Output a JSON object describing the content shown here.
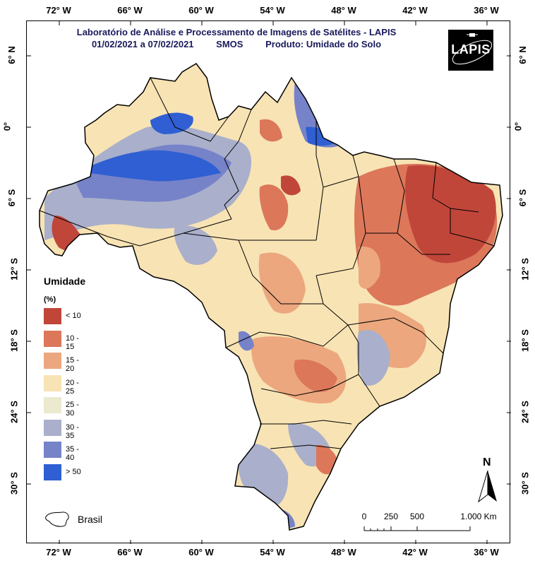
{
  "title": {
    "line1": "Laboratório de Análise e Processamento de Imagens de Satélites - LAPIS",
    "period": "01/02/2021  a  07/02/2021",
    "sensor": "SMOS",
    "product": "Produto: Umidade do Solo"
  },
  "logo": {
    "text": "LAPIS",
    "icon": "satellite-orbit-icon"
  },
  "axes": {
    "longitude_labels": [
      "72° W",
      "66° W",
      "60° W",
      "54° W",
      "48° W",
      "42° W",
      "36° W"
    ],
    "latitude_labels": [
      "6° N",
      "0°",
      "6° S",
      "12° S",
      "18° S",
      "24° S",
      "30° S"
    ]
  },
  "legend": {
    "title": "Umidade",
    "unit": "(%)",
    "classes": [
      {
        "label": "< 10",
        "color": "#c0463a"
      },
      {
        "label": "10 - 15",
        "color": "#dc775a"
      },
      {
        "label": "15 - 20",
        "color": "#eca77e"
      },
      {
        "label": "20 - 25",
        "color": "#f8e3b4"
      },
      {
        "label": "25 - 30",
        "color": "#ebeacf"
      },
      {
        "label": "30 - 35",
        "color": "#aab0cb"
      },
      {
        "label": "35 - 40",
        "color": "#7683c9"
      },
      {
        "label": "> 50",
        "color": "#2f5fd2"
      }
    ]
  },
  "outline_legend": {
    "label": "Brasil",
    "icon": "brazil-outline-icon"
  },
  "scalebar": {
    "labels": [
      "0",
      "250",
      "500",
      "1.000 Km"
    ]
  },
  "north_arrow": {
    "label": "N",
    "icon": "north-arrow-icon"
  }
}
